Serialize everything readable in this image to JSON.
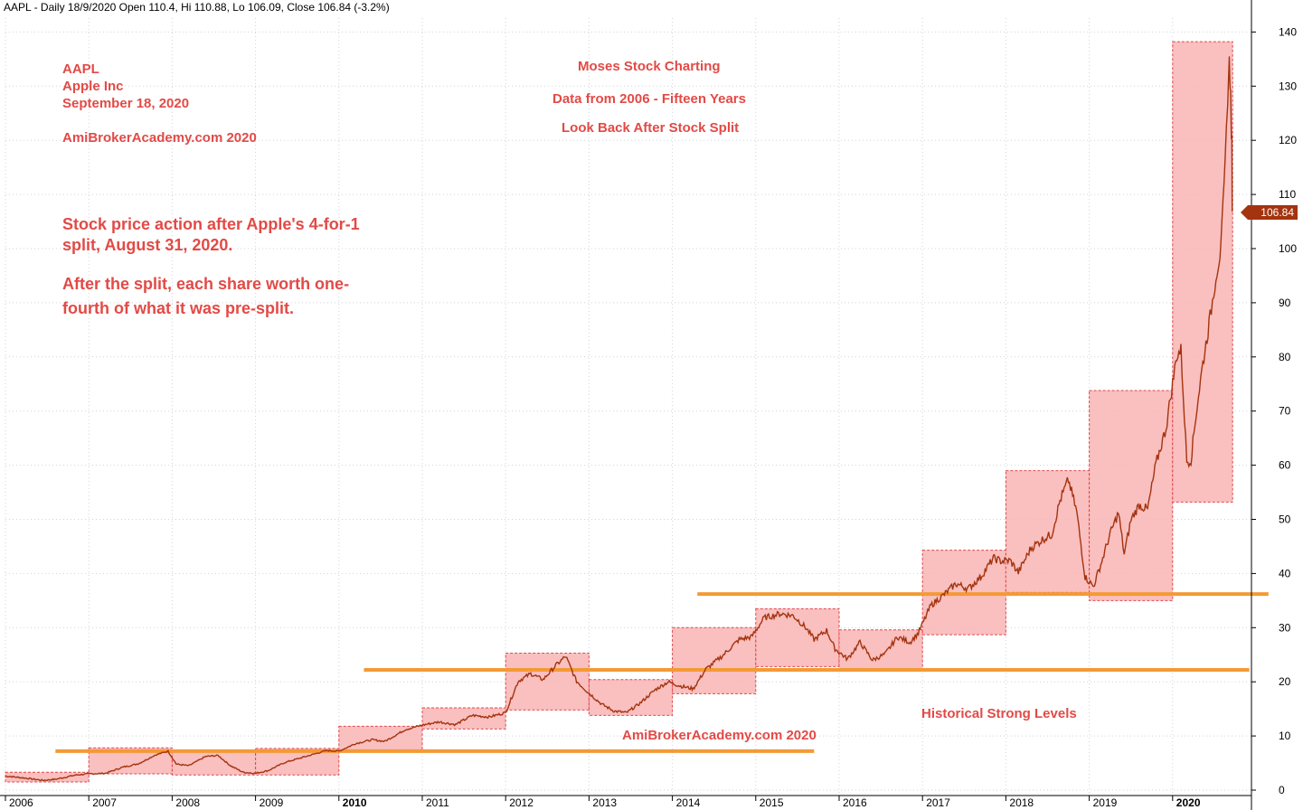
{
  "header": {
    "ticker_line": "AAPL - Daily 18/9/2020 Open 110.4, Hi 110.88, Lo 106.09, Close 106.84 (-3.2%)"
  },
  "annotations": {
    "ticker": "AAPL",
    "company": "Apple Inc",
    "date": "September 18, 2020",
    "site_top": "AmiBrokerAcademy.com  2020",
    "title1": "Moses Stock Charting",
    "title2": "Data from 2006 - Fifteen Years",
    "title3": "Look Back After Stock Split",
    "note1a": "Stock price action after Apple's 4-for-1",
    "note1b": "split, August 31, 2020.",
    "note2a": "After the split, each share worth one-",
    "note2b": "fourth of what it was pre-split.",
    "levels_label": "Historical Strong Levels",
    "site_bottom": "AmiBrokerAcademy.com  2020"
  },
  "colors": {
    "price_line": "#a3340f",
    "box_fill": "#f9b4b4",
    "box_border": "#e0474c",
    "level_line": "#f39a35",
    "annotation_text": "#e24a46"
  },
  "chart_data": {
    "type": "line",
    "title": "",
    "xlabel": "",
    "ylabel": "",
    "ylim": [
      -2,
      143
    ],
    "xlim": [
      2006.0,
      2020.9
    ],
    "y_ticks": [
      0,
      10,
      20,
      30,
      40,
      50,
      60,
      70,
      80,
      90,
      100,
      110,
      120,
      130,
      140
    ],
    "x_ticks": [
      {
        "label": "2006",
        "x": 2006,
        "bold": false
      },
      {
        "label": "2007",
        "x": 2007,
        "bold": false
      },
      {
        "label": "2008",
        "x": 2008,
        "bold": false
      },
      {
        "label": "2009",
        "x": 2009,
        "bold": false
      },
      {
        "label": "2010",
        "x": 2010,
        "bold": true
      },
      {
        "label": "2011",
        "x": 2011,
        "bold": false
      },
      {
        "label": "2012",
        "x": 2012,
        "bold": false
      },
      {
        "label": "2013",
        "x": 2013,
        "bold": false
      },
      {
        "label": "2014",
        "x": 2014,
        "bold": false
      },
      {
        "label": "2015",
        "x": 2015,
        "bold": false
      },
      {
        "label": "2016",
        "x": 2016,
        "bold": false
      },
      {
        "label": "2017",
        "x": 2017,
        "bold": false
      },
      {
        "label": "2018",
        "x": 2018,
        "bold": false
      },
      {
        "label": "2019",
        "x": 2019,
        "bold": false
      },
      {
        "label": "2020",
        "x": 2020,
        "bold": true
      }
    ],
    "series": [
      {
        "values": [
          [
            2006.0,
            2.6
          ],
          [
            2006.25,
            2.2
          ],
          [
            2006.45,
            1.8
          ],
          [
            2006.6,
            2.0
          ],
          [
            2006.85,
            2.8
          ],
          [
            2007.0,
            3.0
          ],
          [
            2007.2,
            3.1
          ],
          [
            2007.4,
            4.2
          ],
          [
            2007.6,
            4.9
          ],
          [
            2007.8,
            6.5
          ],
          [
            2007.95,
            7.2
          ],
          [
            2008.05,
            4.8
          ],
          [
            2008.2,
            4.5
          ],
          [
            2008.4,
            6.2
          ],
          [
            2008.55,
            6.4
          ],
          [
            2008.7,
            4.5
          ],
          [
            2008.85,
            3.3
          ],
          [
            2009.0,
            3.1
          ],
          [
            2009.15,
            3.6
          ],
          [
            2009.35,
            5.1
          ],
          [
            2009.6,
            6.2
          ],
          [
            2009.85,
            7.3
          ],
          [
            2010.0,
            7.2
          ],
          [
            2010.2,
            8.6
          ],
          [
            2010.4,
            9.3
          ],
          [
            2010.55,
            9.0
          ],
          [
            2010.8,
            11.2
          ],
          [
            2011.0,
            12.0
          ],
          [
            2011.2,
            12.6
          ],
          [
            2011.4,
            12.1
          ],
          [
            2011.6,
            13.8
          ],
          [
            2011.8,
            13.5
          ],
          [
            2012.0,
            14.3
          ],
          [
            2012.15,
            20.1
          ],
          [
            2012.3,
            21.5
          ],
          [
            2012.45,
            20.4
          ],
          [
            2012.6,
            23.0
          ],
          [
            2012.72,
            24.7
          ],
          [
            2012.85,
            20.1
          ],
          [
            2013.0,
            17.9
          ],
          [
            2013.15,
            15.9
          ],
          [
            2013.3,
            14.6
          ],
          [
            2013.45,
            14.3
          ],
          [
            2013.6,
            15.9
          ],
          [
            2013.8,
            18.6
          ],
          [
            2013.95,
            20.0
          ],
          [
            2014.1,
            19.2
          ],
          [
            2014.25,
            18.7
          ],
          [
            2014.4,
            22.3
          ],
          [
            2014.6,
            24.8
          ],
          [
            2014.8,
            27.8
          ],
          [
            2014.95,
            28.3
          ],
          [
            2015.1,
            31.8
          ],
          [
            2015.3,
            32.6
          ],
          [
            2015.45,
            32.2
          ],
          [
            2015.6,
            30.0
          ],
          [
            2015.7,
            27.8
          ],
          [
            2015.85,
            29.5
          ],
          [
            2015.95,
            26.1
          ],
          [
            2016.1,
            24.2
          ],
          [
            2016.25,
            27.3
          ],
          [
            2016.4,
            24.0
          ],
          [
            2016.55,
            25.1
          ],
          [
            2016.7,
            28.3
          ],
          [
            2016.85,
            27.3
          ],
          [
            2016.95,
            29.0
          ],
          [
            2017.1,
            34.1
          ],
          [
            2017.25,
            36.0
          ],
          [
            2017.4,
            38.1
          ],
          [
            2017.55,
            37.2
          ],
          [
            2017.7,
            39.4
          ],
          [
            2017.85,
            42.8
          ],
          [
            2017.95,
            42.3
          ],
          [
            2018.05,
            42.4
          ],
          [
            2018.15,
            40.2
          ],
          [
            2018.3,
            44.7
          ],
          [
            2018.45,
            46.4
          ],
          [
            2018.55,
            47.2
          ],
          [
            2018.65,
            53.5
          ],
          [
            2018.75,
            57.3
          ],
          [
            2018.85,
            51.4
          ],
          [
            2018.95,
            39.4
          ],
          [
            2019.05,
            37.6
          ],
          [
            2019.15,
            42.2
          ],
          [
            2019.25,
            47.3
          ],
          [
            2019.35,
            51.2
          ],
          [
            2019.42,
            43.6
          ],
          [
            2019.5,
            49.9
          ],
          [
            2019.6,
            52.7
          ],
          [
            2019.7,
            51.8
          ],
          [
            2019.8,
            60.2
          ],
          [
            2019.92,
            66.8
          ],
          [
            2020.0,
            75.1
          ],
          [
            2020.05,
            80.3
          ],
          [
            2020.1,
            81.2
          ],
          [
            2020.17,
            60.7
          ],
          [
            2020.22,
            61.0
          ],
          [
            2020.28,
            69.2
          ],
          [
            2020.35,
            77.5
          ],
          [
            2020.45,
            87.3
          ],
          [
            2020.52,
            95.0
          ],
          [
            2020.58,
            100.0
          ],
          [
            2020.63,
            115.0
          ],
          [
            2020.66,
            128.5
          ],
          [
            2020.68,
            134.0
          ],
          [
            2020.69,
            131.4
          ],
          [
            2020.7,
            124.8
          ],
          [
            2020.71,
            119.0
          ],
          [
            2020.715,
            106.84
          ]
        ],
        "last_value": "106.84"
      }
    ],
    "boxes": [
      {
        "x0": 2006.0,
        "x1": 2007.0,
        "y0": 1.5,
        "y1": 3.3
      },
      {
        "x0": 2007.0,
        "x1": 2008.0,
        "y0": 3.0,
        "y1": 7.8
      },
      {
        "x0": 2008.0,
        "x1": 2009.0,
        "y0": 2.8,
        "y1": 7.3
      },
      {
        "x0": 2009.0,
        "x1": 2010.0,
        "y0": 2.8,
        "y1": 7.7
      },
      {
        "x0": 2010.0,
        "x1": 2011.0,
        "y0": 7.0,
        "y1": 11.8
      },
      {
        "x0": 2011.0,
        "x1": 2012.0,
        "y0": 11.3,
        "y1": 15.2
      },
      {
        "x0": 2012.0,
        "x1": 2013.0,
        "y0": 14.8,
        "y1": 25.3
      },
      {
        "x0": 2013.0,
        "x1": 2014.0,
        "y0": 13.8,
        "y1": 20.4
      },
      {
        "x0": 2014.0,
        "x1": 2015.0,
        "y0": 17.8,
        "y1": 30.0
      },
      {
        "x0": 2015.0,
        "x1": 2016.0,
        "y0": 22.8,
        "y1": 33.5
      },
      {
        "x0": 2016.0,
        "x1": 2017.0,
        "y0": 22.4,
        "y1": 29.6
      },
      {
        "x0": 2017.0,
        "x1": 2018.0,
        "y0": 28.7,
        "y1": 44.3
      },
      {
        "x0": 2018.0,
        "x1": 2019.0,
        "y0": 36.5,
        "y1": 59.0
      },
      {
        "x0": 2019.0,
        "x1": 2020.0,
        "y0": 35.0,
        "y1": 73.8
      },
      {
        "x0": 2020.0,
        "x1": 2020.72,
        "y0": 53.2,
        "y1": 138.2
      }
    ],
    "levels": [
      {
        "y": 7.2,
        "x0": 2006.6,
        "x1": 2015.7
      },
      {
        "y": 22.2,
        "x0": 2010.3,
        "x1": 2020.92
      },
      {
        "y": 36.2,
        "x0": 2014.3,
        "x1": 2021.15
      }
    ]
  }
}
